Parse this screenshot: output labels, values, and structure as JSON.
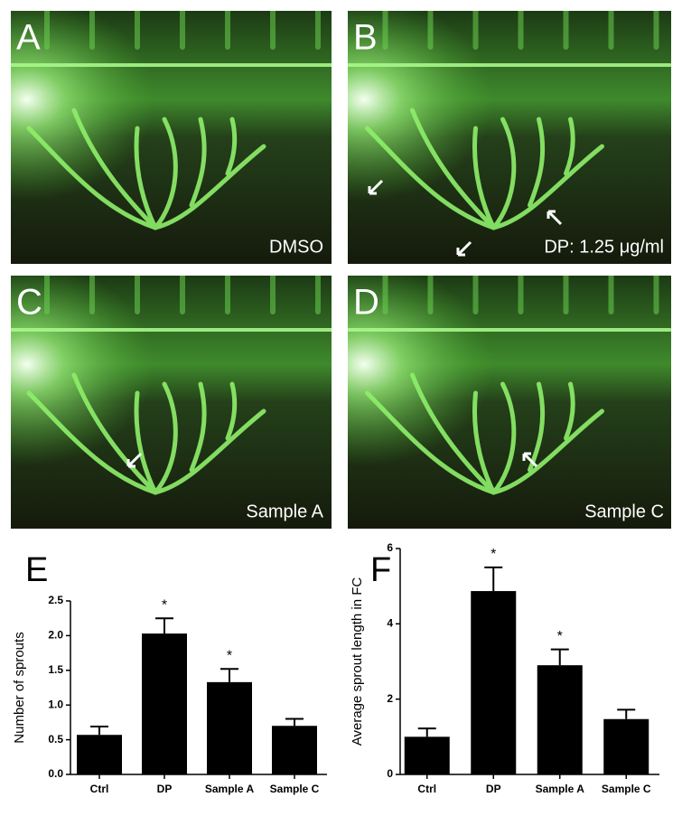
{
  "panels": [
    {
      "letter": "A",
      "caption": "DMSO"
    },
    {
      "letter": "B",
      "caption": "DP: 1.25 μg/ml"
    },
    {
      "letter": "C",
      "caption": "Sample A"
    },
    {
      "letter": "D",
      "caption": "Sample C"
    }
  ],
  "chart_data": [
    {
      "type": "bar",
      "title": "E",
      "y_label": "Number of sprouts",
      "categories": [
        "Ctrl",
        "DP",
        "Sample A",
        "Sample C"
      ],
      "values": [
        0.57,
        2.03,
        1.33,
        0.7
      ],
      "errors": [
        0.12,
        0.22,
        0.19,
        0.1
      ],
      "significance": [
        null,
        "*",
        "*",
        null
      ],
      "color": "#000000",
      "ylim": [
        0,
        2.5
      ],
      "yticks": [
        {
          "value": 0,
          "label": "0.0"
        },
        0.5,
        {
          "value": 1,
          "label": "1.0"
        },
        1.5,
        {
          "value": 2,
          "label": "2.0"
        },
        2.5
      ]
    },
    {
      "type": "bar",
      "title": "F",
      "y_label": "Average sprout length in FC",
      "categories": [
        "Ctrl",
        "DP",
        "Sample A",
        "Sample C"
      ],
      "values": [
        1.0,
        4.87,
        2.9,
        1.47
      ],
      "errors": [
        0.22,
        0.63,
        0.42,
        0.25
      ],
      "significance": [
        null,
        "*",
        "*",
        null
      ],
      "color": "#000000",
      "ylim": [
        0,
        6
      ],
      "yticks": [
        0,
        2,
        4,
        6
      ]
    }
  ]
}
